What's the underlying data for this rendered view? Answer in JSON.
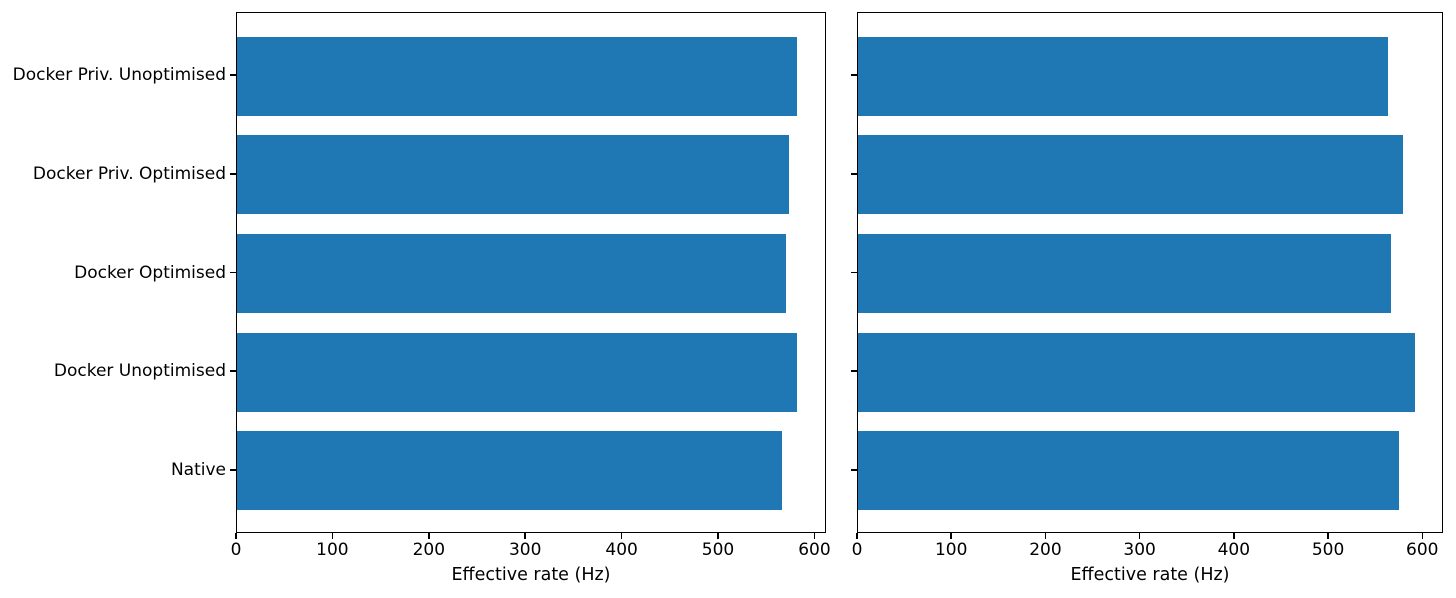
{
  "figure": {
    "background": "#ffffff",
    "bar_color": "#1f77b4",
    "axis_color": "#000000",
    "text_color": "#000000"
  },
  "chart_data": [
    {
      "type": "bar",
      "orientation": "horizontal",
      "title": "",
      "xlabel": "Effective rate (Hz)",
      "ylabel": "",
      "categories": [
        "Docker Priv. Unoptimised",
        "Docker Priv. Optimised",
        "Docker Optimised",
        "Docker Unoptimised",
        "Native"
      ],
      "category_order": "top-to-bottom",
      "values": [
        583,
        575,
        571,
        583,
        567
      ],
      "xlim": [
        0,
        612
      ],
      "xticks": [
        0,
        100,
        200,
        300,
        400,
        500,
        600
      ],
      "y_tick_labels_visible": true,
      "grid": false,
      "legend": "none"
    },
    {
      "type": "bar",
      "orientation": "horizontal",
      "title": "",
      "xlabel": "Effective rate (Hz)",
      "ylabel": "",
      "categories": [
        "Docker Priv. Unoptimised",
        "Docker Priv. Optimised",
        "Docker Optimised",
        "Docker Unoptimised",
        "Native"
      ],
      "category_order": "top-to-bottom",
      "values": [
        565,
        580,
        568,
        593,
        576
      ],
      "xlim": [
        0,
        622
      ],
      "xticks": [
        0,
        100,
        200,
        300,
        400,
        500,
        600
      ],
      "y_tick_labels_visible": false,
      "grid": false,
      "legend": "none"
    }
  ]
}
